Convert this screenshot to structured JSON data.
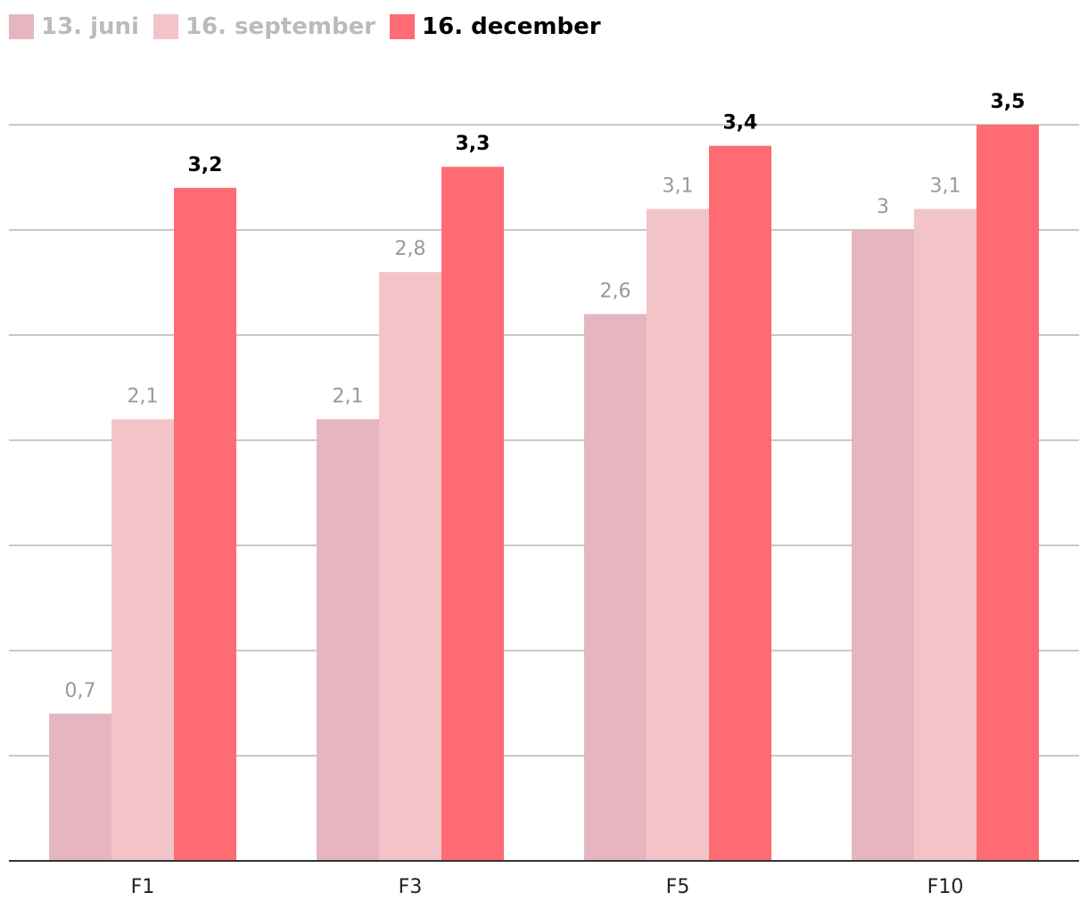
{
  "chart_data": {
    "type": "bar",
    "title": "",
    "xlabel": "",
    "ylabel": "",
    "ylim": [
      0,
      3.5
    ],
    "grid": true,
    "legend_position": "top-left",
    "categories": [
      "F1",
      "F3",
      "F5",
      "F10"
    ],
    "series": [
      {
        "name": "13. juni",
        "color": "#e5b6bf",
        "label_color": "#999999",
        "emphasis": false,
        "values": [
          0.7,
          2.1,
          2.6,
          3.0
        ],
        "labels": [
          "0,7",
          "2,1",
          "2,6",
          "3"
        ]
      },
      {
        "name": "16. september",
        "color": "#f3c4c7",
        "label_color": "#999999",
        "emphasis": false,
        "values": [
          2.1,
          2.8,
          3.1,
          3.1
        ],
        "labels": [
          "2,1",
          "2,8",
          "3,1",
          "3,1"
        ]
      },
      {
        "name": "16. december",
        "color": "#ff6b73",
        "label_color": "#000000",
        "emphasis": true,
        "values": [
          3.2,
          3.3,
          3.4,
          3.5
        ],
        "labels": [
          "3,2",
          "3,3",
          "3,4",
          "3,5"
        ]
      }
    ]
  }
}
